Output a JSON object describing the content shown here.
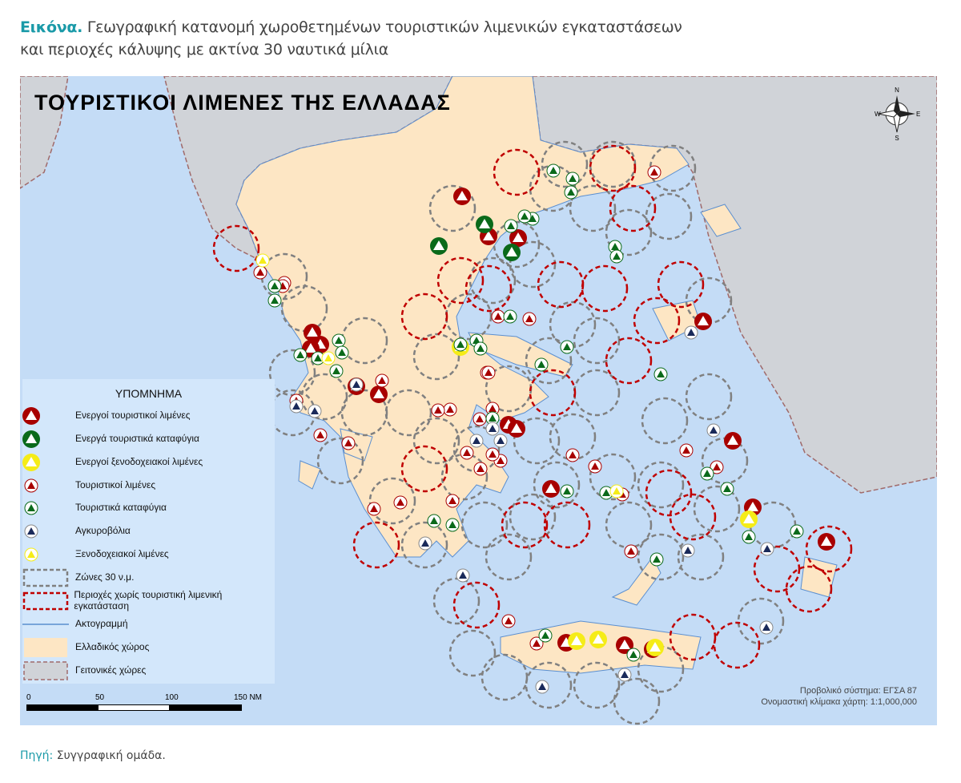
{
  "caption": {
    "lead": "Εικόνα.",
    "line1": "Γεωγραφική κατανομή χωροθετημένων τουριστικών λιμενικών εγκαταστάσεων",
    "line2": "και περιοχές κάλυψης με ακτίνα 30 ναυτικά μίλια"
  },
  "map": {
    "title": "ΤΟΥΡΙΣΤΙΚΟΙ ΛΙΜΕΝΕΣ ΤΗΣ ΕΛΛΑΔΑΣ",
    "compass": {
      "n": "N",
      "s": "S",
      "e": "E",
      "w": "W"
    },
    "colors": {
      "sea": "#c4dcf6",
      "greece": "#fde6c4",
      "neighbors": "#d0d3d8",
      "zone": "#808080",
      "gap_zone": "#c00000",
      "red": "#a80000",
      "green": "#0a6a1a",
      "yellow": "#f5ec18",
      "navy": "#1a2a5a"
    }
  },
  "legend": {
    "title": "ΥΠΟΜΝΗΜΑ",
    "items": [
      {
        "label": "Ενεργοί τουριστικοί λιμένες",
        "symbol": "active-marina"
      },
      {
        "label": "Ενεργά τουριστικά καταφύγια",
        "symbol": "active-shelter"
      },
      {
        "label": "Ενεργοί ξενοδοχειακοί λιμένες",
        "symbol": "active-hotel-port"
      },
      {
        "label": "Τουριστικοί λιμένες",
        "symbol": "marina"
      },
      {
        "label": "Τουριστικά καταφύγια",
        "symbol": "shelter"
      },
      {
        "label": "Αγκυροβόλια",
        "symbol": "anchorage"
      },
      {
        "label": "Ξενοδοχειακοί λιμένες",
        "symbol": "hotel-port"
      },
      {
        "label": "Ζώνες 30 ν.μ.",
        "symbol": "zone"
      },
      {
        "label": "Περιοχές χωρίς τουριστική λιμενική εγκατάσταση",
        "symbol": "gap-zone"
      },
      {
        "label": "Ακτογραμμή",
        "symbol": "coastline"
      },
      {
        "label": "Ελλαδικός χώρος",
        "symbol": "greece"
      },
      {
        "label": "Γειτονικές χώρες",
        "symbol": "neighbors"
      }
    ]
  },
  "scale": {
    "labels": [
      "0",
      "50",
      "100",
      "150 NM"
    ]
  },
  "projection": {
    "system": "Προβολικό σύστημα: ΕΓΣΑ 87",
    "scale": "Ονομαστική κλίμακα χάρτη: 1:1,000,000"
  },
  "source": {
    "lead": "Πηγή:",
    "text": "Συγγραφική ομάδα."
  }
}
